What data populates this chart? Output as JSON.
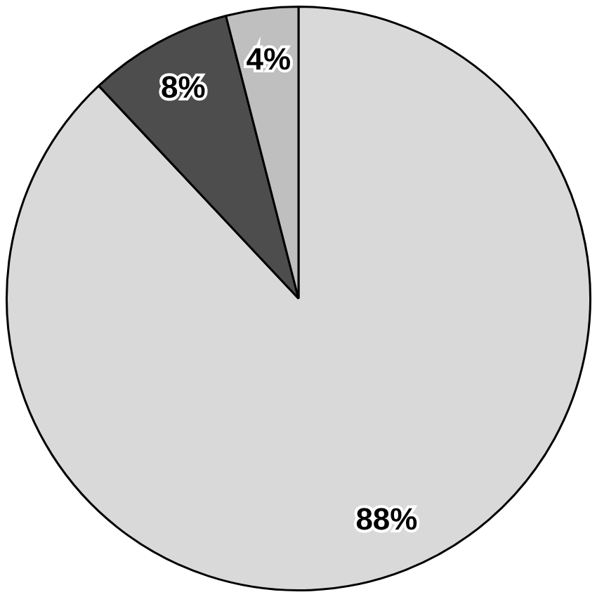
{
  "chart_data": {
    "type": "pie",
    "categories": [
      null,
      null,
      null
    ],
    "values": [
      88,
      8,
      4
    ],
    "colors": [
      "#d9d9d9",
      "#4d4d4d",
      "#bfbfbf"
    ],
    "value_labels": [
      "88%",
      "8%",
      "4%"
    ]
  }
}
